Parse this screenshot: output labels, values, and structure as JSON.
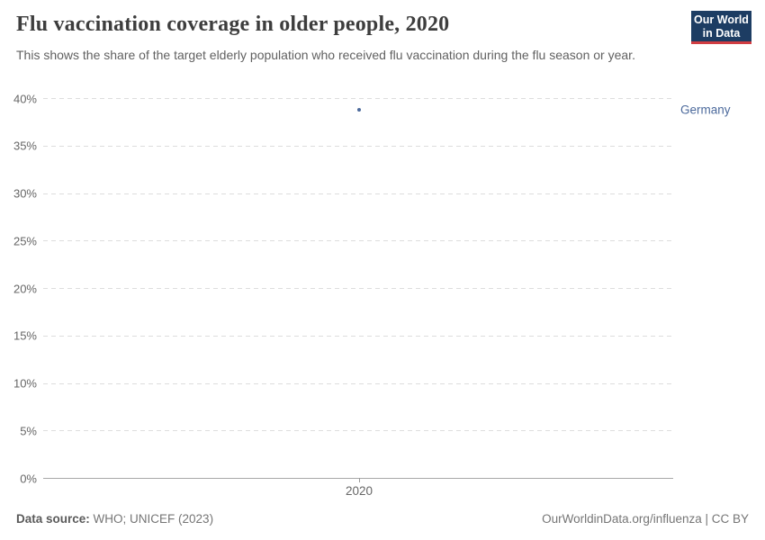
{
  "header": {
    "title": "Flu vaccination coverage in older people, 2020",
    "subtitle": "This shows the share of the target elderly population who received flu vaccination during the flu season or year.",
    "logo": {
      "line1": "Our World",
      "line2": "in Data"
    }
  },
  "chart_data": {
    "type": "scatter",
    "title": "Flu vaccination coverage in older people, 2020",
    "series": [
      {
        "name": "Germany",
        "x": [
          2020
        ],
        "values": [
          38.8
        ]
      }
    ],
    "x_ticks": [
      "2020"
    ],
    "y_ticks": [
      "0%",
      "5%",
      "10%",
      "15%",
      "20%",
      "25%",
      "30%",
      "35%",
      "40%"
    ],
    "ylim": [
      0,
      40
    ],
    "xlabel": "",
    "ylabel": "",
    "grid": "horizontal-dashed",
    "legend_position": "right-of-point",
    "point_color": "#4c6a9c"
  },
  "footer": {
    "source_label": "Data source:",
    "source_value": "WHO; UNICEF (2023)",
    "attribution": "OurWorldinData.org/influenza | CC BY"
  },
  "colors": {
    "accent_series": "#4c6a9c",
    "logo_bg": "#1d3d63",
    "logo_accent": "#d13d42",
    "gridline": "#dddddd",
    "axis_line": "#a7a7a7",
    "text_muted": "#666666"
  }
}
